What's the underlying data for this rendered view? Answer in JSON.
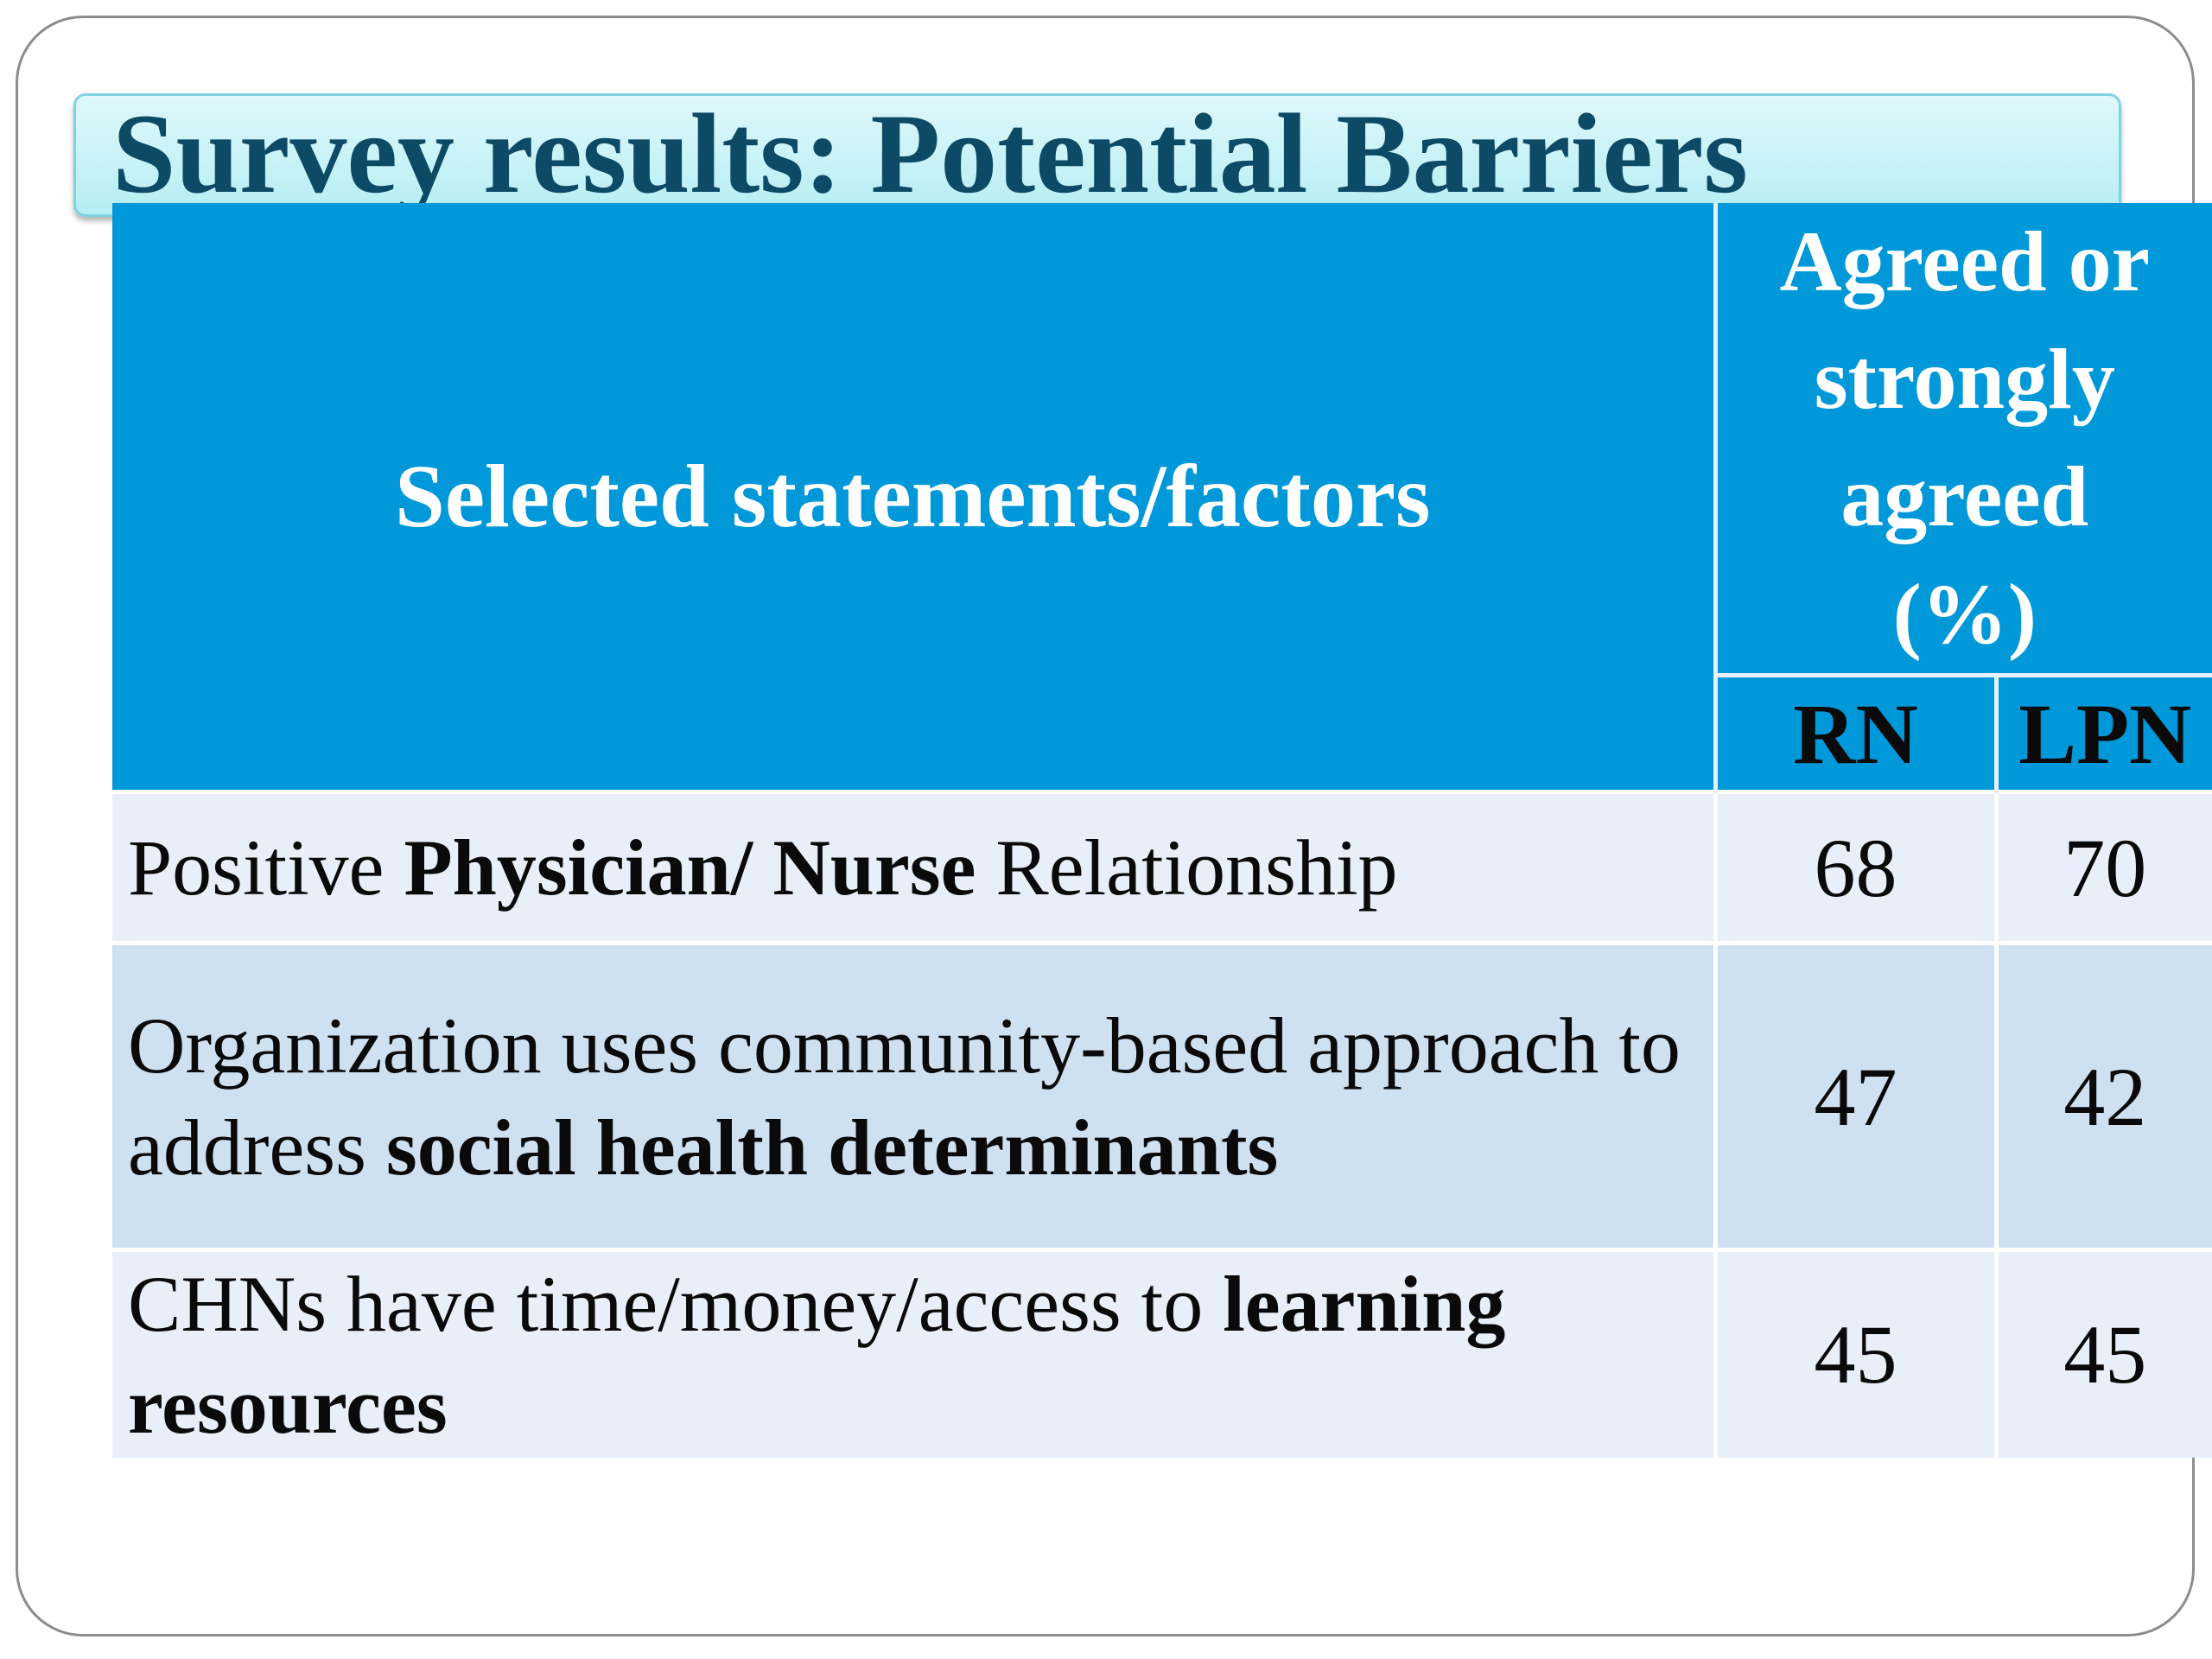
{
  "title": "Survey results: Potential Barriers",
  "table": {
    "header": {
      "statements": "Selected statements/factors",
      "agreed_line1": "Agreed or",
      "agreed_line2": "strongly",
      "agreed_line3": "agreed",
      "agreed_line4": "(%)",
      "rn": "RN",
      "lpn": "LPN"
    },
    "rows": [
      {
        "statement_part1": "Positive ",
        "statement_bold": "Physician/ Nurse",
        "statement_part2": " Relationship",
        "rn": "68",
        "lpn": "70"
      },
      {
        "statement_part1": "Organization uses community-based approach to address ",
        "statement_bold": "social health determinants",
        "statement_part2": "",
        "rn": "47",
        "lpn": "42"
      },
      {
        "statement_part1": "CHNs have time/money/access to ",
        "statement_bold": "learning resources",
        "statement_part2": "",
        "rn": "45",
        "lpn": "45"
      }
    ]
  },
  "colors": {
    "title_text": "#0d4a66",
    "header_background": "#0098d8",
    "row_light": "#e8eff8",
    "row_dark": "#cfe0f0"
  }
}
